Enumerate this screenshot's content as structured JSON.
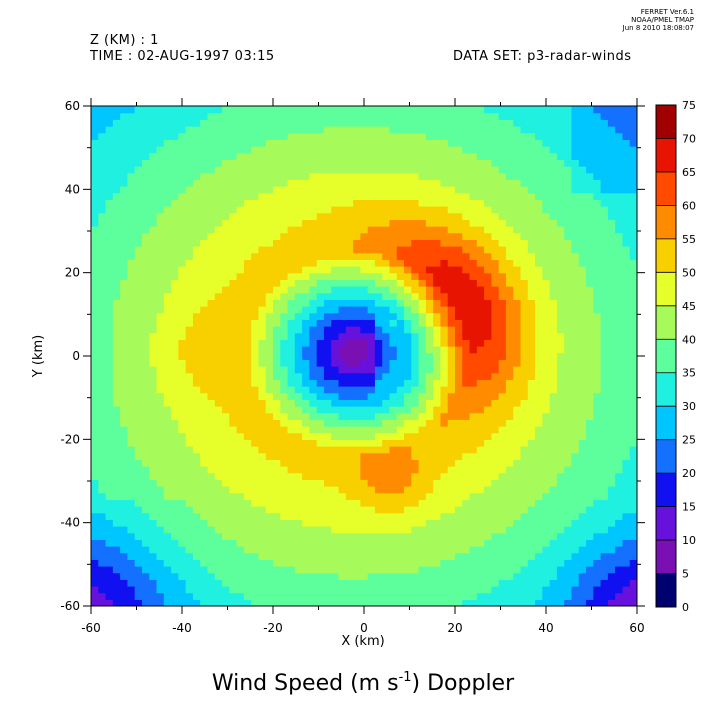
{
  "header": {
    "ferret_line1": "FERRET  Ver.6.1",
    "ferret_line2": "NOAA/PMEL TMAP",
    "ferret_line3": "Jun  8 2010 18:08:07",
    "z_label": "Z (KM) : 1",
    "time_label": "TIME : 02-AUG-1997 03:15",
    "dataset_label": "DATA SET: p3-radar-winds"
  },
  "chart_data": {
    "type": "heatmap",
    "title": "Wind Speed (m s-1) Doppler",
    "title_main": "Wind Speed (m s",
    "title_sup": "-1",
    "title_end": ") Doppler",
    "xlabel": "X (km)",
    "ylabel": "Y (km)",
    "xlim": [
      -60,
      60
    ],
    "ylim": [
      -60,
      60
    ],
    "x_ticks": [
      -60,
      -40,
      -20,
      0,
      20,
      40,
      60
    ],
    "y_ticks": [
      -60,
      -40,
      -20,
      0,
      20,
      40,
      60
    ],
    "x_tick_labels": [
      "-60",
      "-40",
      "-20",
      "0",
      "20",
      "40",
      "60"
    ],
    "y_tick_labels": [
      "-60",
      "-40",
      "-20",
      "0",
      "20",
      "40",
      "60"
    ],
    "colorbar": {
      "levels": [
        0,
        5,
        10,
        15,
        20,
        25,
        30,
        35,
        40,
        45,
        50,
        55,
        60,
        65,
        70,
        75
      ],
      "level_labels": [
        "0",
        "5",
        "10",
        "15",
        "20",
        "25",
        "30",
        "35",
        "40",
        "45",
        "50",
        "55",
        "60",
        "65",
        "70",
        "75"
      ],
      "colors": [
        "#00006e",
        "#7a10b4",
        "#6611dc",
        "#1010f0",
        "#1470ff",
        "#00c6ff",
        "#20f0e0",
        "#5cff9c",
        "#a6fa5a",
        "#e6ff2a",
        "#f8d000",
        "#ff8c00",
        "#ff4a00",
        "#e61400",
        "#a00000"
      ]
    },
    "field": {
      "eye_center": [
        -2,
        1
      ],
      "approx_peak_speed": 72,
      "approx_peak_location": [
        22,
        5
      ]
    }
  }
}
